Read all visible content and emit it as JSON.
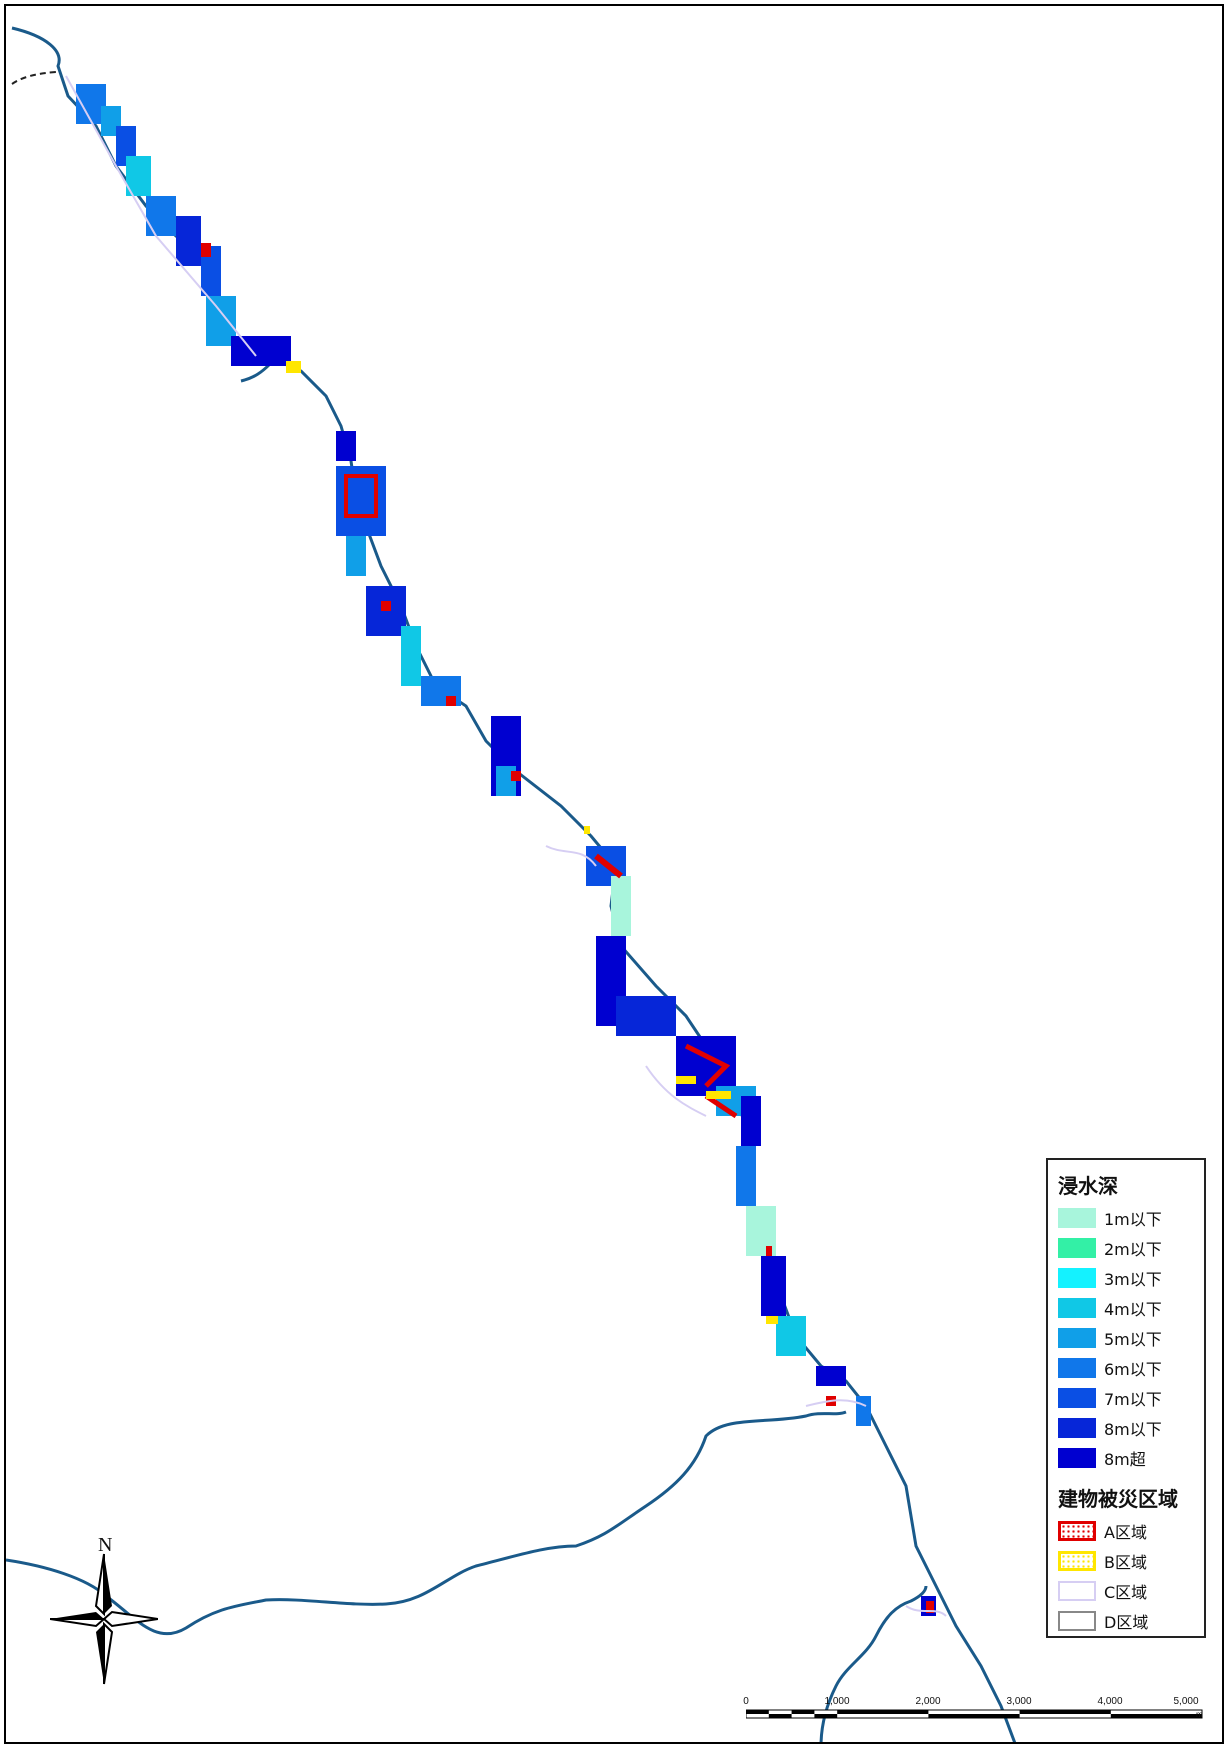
{
  "legend": {
    "depth_title": "浸水深",
    "depth_classes": [
      {
        "label": "1m以下",
        "color": "#a8f5dc"
      },
      {
        "label": "2m以下",
        "color": "#33f0a6"
      },
      {
        "label": "3m以下",
        "color": "#14f2ff"
      },
      {
        "label": "4m以下",
        "color": "#10c8e6"
      },
      {
        "label": "5m以下",
        "color": "#109fe8"
      },
      {
        "label": "6m以下",
        "color": "#1077ea"
      },
      {
        "label": "7m以下",
        "color": "#0a4fe4"
      },
      {
        "label": "8m以下",
        "color": "#0626d8"
      },
      {
        "label": "8m超",
        "color": "#0000d0"
      }
    ],
    "damage_title": "建物被災区域",
    "damage_classes": [
      {
        "label": "A区域",
        "color": "#e00000"
      },
      {
        "label": "B区域",
        "color": "#ffe600"
      },
      {
        "label": "C区域",
        "color": "#d6cef3"
      },
      {
        "label": "D区域",
        "color": "#888888"
      }
    ]
  },
  "north_arrow": {
    "label": "N"
  },
  "scale_bar": {
    "labels": [
      "0",
      "1,000",
      "2,000",
      "3,000",
      "4,000",
      "5,000"
    ],
    "unit": "m"
  },
  "map": {
    "river_color": "#1a5a8a",
    "river_path_color": "#174e7d"
  }
}
